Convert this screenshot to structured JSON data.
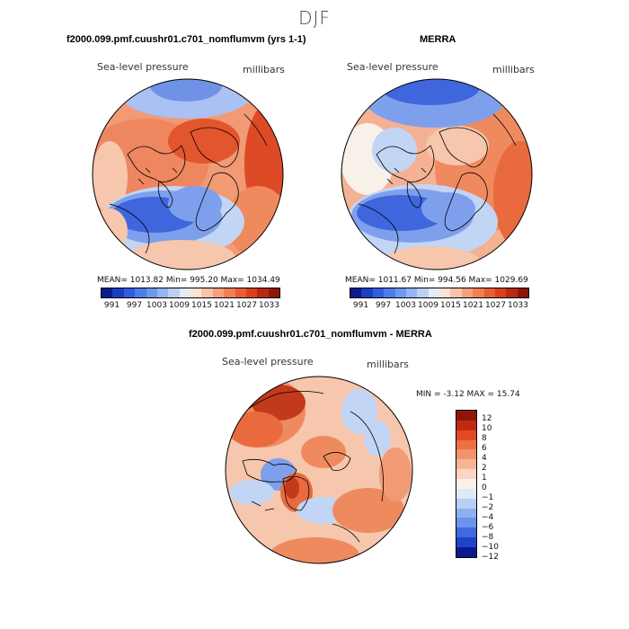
{
  "season": "DJF",
  "panels": {
    "model": {
      "title": "f2000.099.pmf.cuushr01.c701_nomflumvm (yrs 1-1)",
      "variable": "Sea-level pressure",
      "units": "millibars",
      "mean": "1013.82",
      "min": "995.20",
      "max": "1034.49",
      "stats_text": "MEAN= 1013.82   Min= 995.20   Max= 1034.49"
    },
    "obs": {
      "title": "MERRA",
      "variable": "Sea-level pressure",
      "units": "millibars",
      "mean": "1011.67",
      "min": "994.56",
      "max": "1029.69",
      "stats_text": "MEAN= 1011.67   Min= 994.56   Max= 1029.69"
    },
    "diff": {
      "title": "f2000.099.pmf.cuushr01.c701_nomflumvm - MERRA",
      "variable": "Sea-level pressure",
      "units": "millibars",
      "min": "-3.12",
      "max": "15.74",
      "stats_text": "MIN =   -3.12  MAX =   15.74"
    }
  },
  "colorbar_abs": {
    "tick_labels": [
      "991",
      "997",
      "1003",
      "1009",
      "1015",
      "1021",
      "1027",
      "1033"
    ],
    "colors": [
      "#0b1a8c",
      "#1a3fc2",
      "#2f5fe0",
      "#4d7ee8",
      "#6f98ef",
      "#94b5f3",
      "#bcd0f6",
      "#e4ecf8",
      "#fbe3d6",
      "#f8c3a8",
      "#f4a07c",
      "#ef7f55",
      "#e85d35",
      "#d8401f",
      "#b82812",
      "#8e1608"
    ]
  },
  "colorbar_diff": {
    "tick_labels": [
      "12",
      "10",
      "8",
      "6",
      "4",
      "2",
      "1",
      "0",
      "−1",
      "−2",
      "−4",
      "−6",
      "−8",
      "−10",
      "−12"
    ],
    "colors": [
      "#8e1608",
      "#c12a12",
      "#e24a24",
      "#ef6f45",
      "#f4926a",
      "#f8b596",
      "#fbd6c3",
      "#faf1ea",
      "#dfe9f7",
      "#b9cff4",
      "#8fb0ef",
      "#6b93ea",
      "#3e6ae0",
      "#1f44c8",
      "#0a1b8e"
    ]
  },
  "map_colors": {
    "deep_blue": "#3f66dc",
    "mid_blue": "#7ea0ec",
    "light_blue": "#c3d5f5",
    "white": "#f7f1ea",
    "light_red": "#f6c6ad",
    "mid_red": "#ef8a5f",
    "red": "#e86a3e",
    "dark_red": "#c23a1c"
  }
}
